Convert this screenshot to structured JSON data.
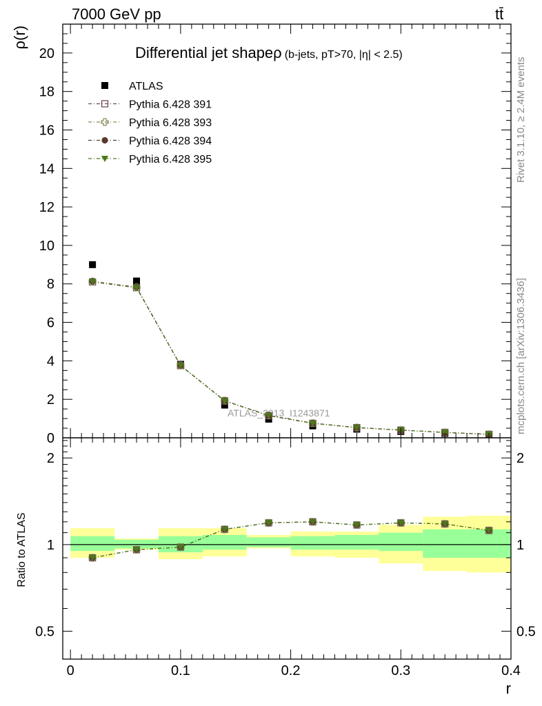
{
  "header": {
    "top_left": "7000 GeV pp",
    "top_right": "tt̄"
  },
  "side_labels": {
    "rivet": "Rivet 3.1.10, ≥ 2.4M events",
    "mcplots": "mcplots.cern.ch [arXiv:1306.3436]"
  },
  "colors": {
    "atlas": "#000000",
    "p391": "#6b4a5a",
    "p393": "#8a8a5a",
    "p394": "#5a3a2a",
    "p395": "#4a7a1a",
    "band_inner": "#99ff99",
    "band_outer": "#ffff99"
  },
  "chart_data": [
    {
      "type": "scatter",
      "title": "Differential jet shape",
      "title_symbol": "ρ",
      "subtitle": "(b-jets, pT>70, |η| < 2.5)",
      "ylabel": "ρ(r)",
      "xlabel": "r",
      "xlim": [
        -0.007,
        0.4
      ],
      "ylim": [
        0,
        21.5
      ],
      "x_ticks": [
        0,
        0.1,
        0.2,
        0.3,
        0.4
      ],
      "x_tick_labels": [
        "0",
        "0.1",
        "0.2",
        "0.3",
        "0.4"
      ],
      "y_ticks": [
        0,
        2,
        4,
        6,
        8,
        10,
        12,
        14,
        16,
        18,
        20
      ],
      "y_tick_labels": [
        "0",
        "2",
        "4",
        "6",
        "8",
        "10",
        "12",
        "14",
        "16",
        "18",
        "20"
      ],
      "watermark": "ATLAS_2013_I1243871",
      "legend_position": "top-left",
      "x": [
        0.02,
        0.06,
        0.1,
        0.14,
        0.18,
        0.22,
        0.26,
        0.3,
        0.34,
        0.38
      ],
      "series": [
        {
          "name": "ATLAS",
          "marker": "square-filled",
          "values": [
            9.0,
            8.15,
            3.82,
            1.7,
            0.97,
            0.62,
            0.45,
            0.33,
            0.23,
            0.16
          ]
        },
        {
          "name": "Pythia 6.428 391",
          "marker": "square-open",
          "values": [
            8.1,
            7.8,
            3.75,
            1.92,
            1.15,
            0.75,
            0.53,
            0.4,
            0.28,
            0.18
          ]
        },
        {
          "name": "Pythia 6.428 393",
          "marker": "cross-open",
          "values": [
            8.12,
            7.82,
            3.76,
            1.93,
            1.16,
            0.76,
            0.53,
            0.4,
            0.28,
            0.18
          ]
        },
        {
          "name": "Pythia 6.428 394",
          "marker": "circle-filled",
          "values": [
            8.13,
            7.83,
            3.76,
            1.93,
            1.16,
            0.76,
            0.54,
            0.4,
            0.28,
            0.18
          ]
        },
        {
          "name": "Pythia 6.428 395",
          "marker": "triangle-down",
          "values": [
            8.12,
            7.8,
            3.75,
            1.92,
            1.15,
            0.75,
            0.53,
            0.4,
            0.28,
            0.18
          ]
        }
      ]
    },
    {
      "type": "line",
      "ylabel": "Ratio to ATLAS",
      "xlabel": "r",
      "xlim": [
        -0.007,
        0.4
      ],
      "ylim": [
        0.4,
        2.35
      ],
      "y_scale": "log",
      "y_ticks": [
        0.5,
        1,
        2
      ],
      "y_tick_labels": [
        "0.5",
        "1",
        "2"
      ],
      "x_ticks": [
        0,
        0.1,
        0.2,
        0.3,
        0.4
      ],
      "x_tick_labels": [
        "0",
        "0.1",
        "0.2",
        "0.3",
        "0.4"
      ],
      "bin_edges": [
        0,
        0.04,
        0.08,
        0.12,
        0.16,
        0.2,
        0.24,
        0.28,
        0.32,
        0.36,
        0.4
      ],
      "band_inner": [
        [
          0.95,
          1.07
        ],
        [
          0.97,
          1.04
        ],
        [
          0.94,
          1.07
        ],
        [
          0.96,
          1.08
        ],
        [
          0.98,
          1.06
        ],
        [
          0.96,
          1.07
        ],
        [
          0.96,
          1.08
        ],
        [
          0.95,
          1.1
        ],
        [
          0.9,
          1.13
        ],
        [
          0.9,
          1.13
        ]
      ],
      "band_outer": [
        [
          0.9,
          1.14
        ],
        [
          0.96,
          1.05
        ],
        [
          0.89,
          1.14
        ],
        [
          0.91,
          1.14
        ],
        [
          0.97,
          1.08
        ],
        [
          0.91,
          1.11
        ],
        [
          0.9,
          1.11
        ],
        [
          0.86,
          1.17
        ],
        [
          0.81,
          1.25
        ],
        [
          0.8,
          1.26
        ]
      ],
      "x": [
        0.02,
        0.06,
        0.1,
        0.14,
        0.18,
        0.22,
        0.26,
        0.3,
        0.34,
        0.38
      ],
      "series": [
        {
          "name": "Pythia 6.428 391",
          "marker": "square-open",
          "values": [
            0.9,
            0.96,
            0.98,
            1.13,
            1.19,
            1.2,
            1.17,
            1.19,
            1.18,
            1.12
          ]
        },
        {
          "name": "Pythia 6.428 393",
          "marker": "cross-open",
          "values": [
            0.9,
            0.96,
            0.98,
            1.13,
            1.19,
            1.2,
            1.17,
            1.19,
            1.18,
            1.12
          ]
        },
        {
          "name": "Pythia 6.428 394",
          "marker": "circle-filled",
          "values": [
            0.9,
            0.96,
            0.98,
            1.13,
            1.19,
            1.2,
            1.17,
            1.19,
            1.18,
            1.12
          ]
        },
        {
          "name": "Pythia 6.428 395",
          "marker": "triangle-down",
          "values": [
            0.9,
            0.96,
            0.98,
            1.13,
            1.19,
            1.2,
            1.17,
            1.19,
            1.18,
            1.12
          ]
        }
      ]
    }
  ]
}
